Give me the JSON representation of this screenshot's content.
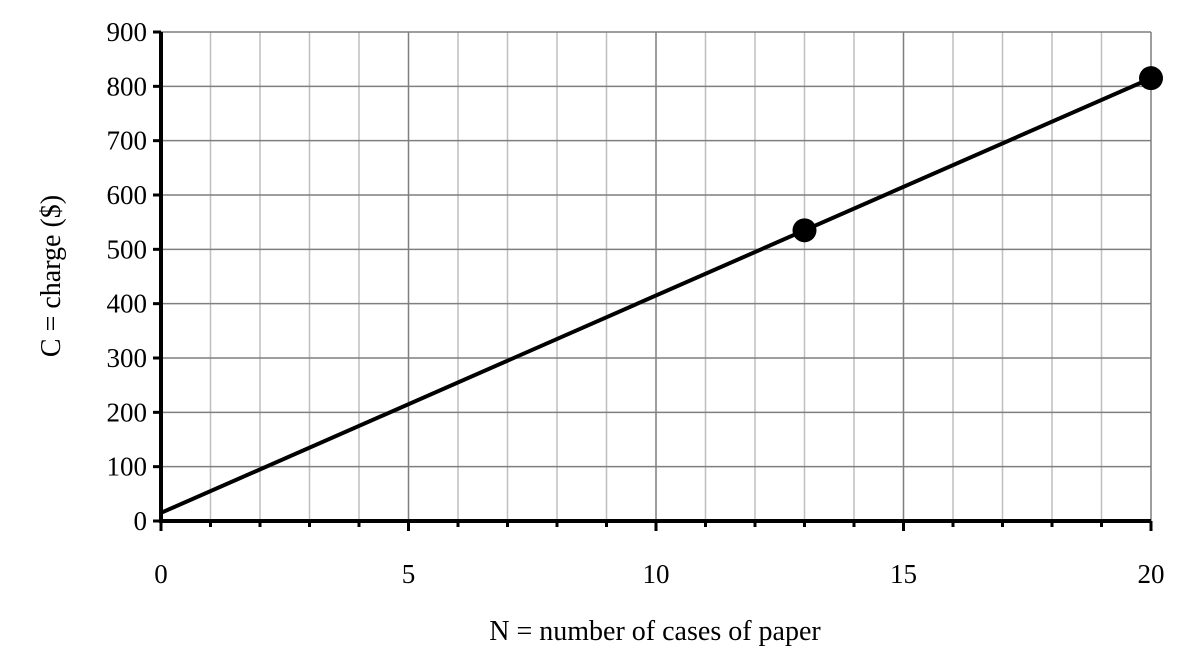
{
  "chart_data": {
    "type": "line",
    "title": "",
    "xlabel": "N = number of cases of paper",
    "ylabel": "C = charge ($)",
    "xlim": [
      0,
      20
    ],
    "ylim": [
      0,
      900
    ],
    "x_major_ticks": [
      0,
      5,
      10,
      15,
      20
    ],
    "x_minor_step": 1,
    "y_ticks": [
      0,
      100,
      200,
      300,
      400,
      500,
      600,
      700,
      800,
      900
    ],
    "grid": true,
    "series": [
      {
        "type": "line",
        "x": [
          0,
          20
        ],
        "y": [
          15,
          815
        ]
      },
      {
        "type": "scatter",
        "x": [
          13,
          20
        ],
        "y": [
          535,
          815
        ]
      }
    ],
    "colors": {
      "line": "#000000",
      "grid_minor": "#bfbfbf",
      "grid_major": "#7f7f7f",
      "axis": "#000000"
    }
  }
}
